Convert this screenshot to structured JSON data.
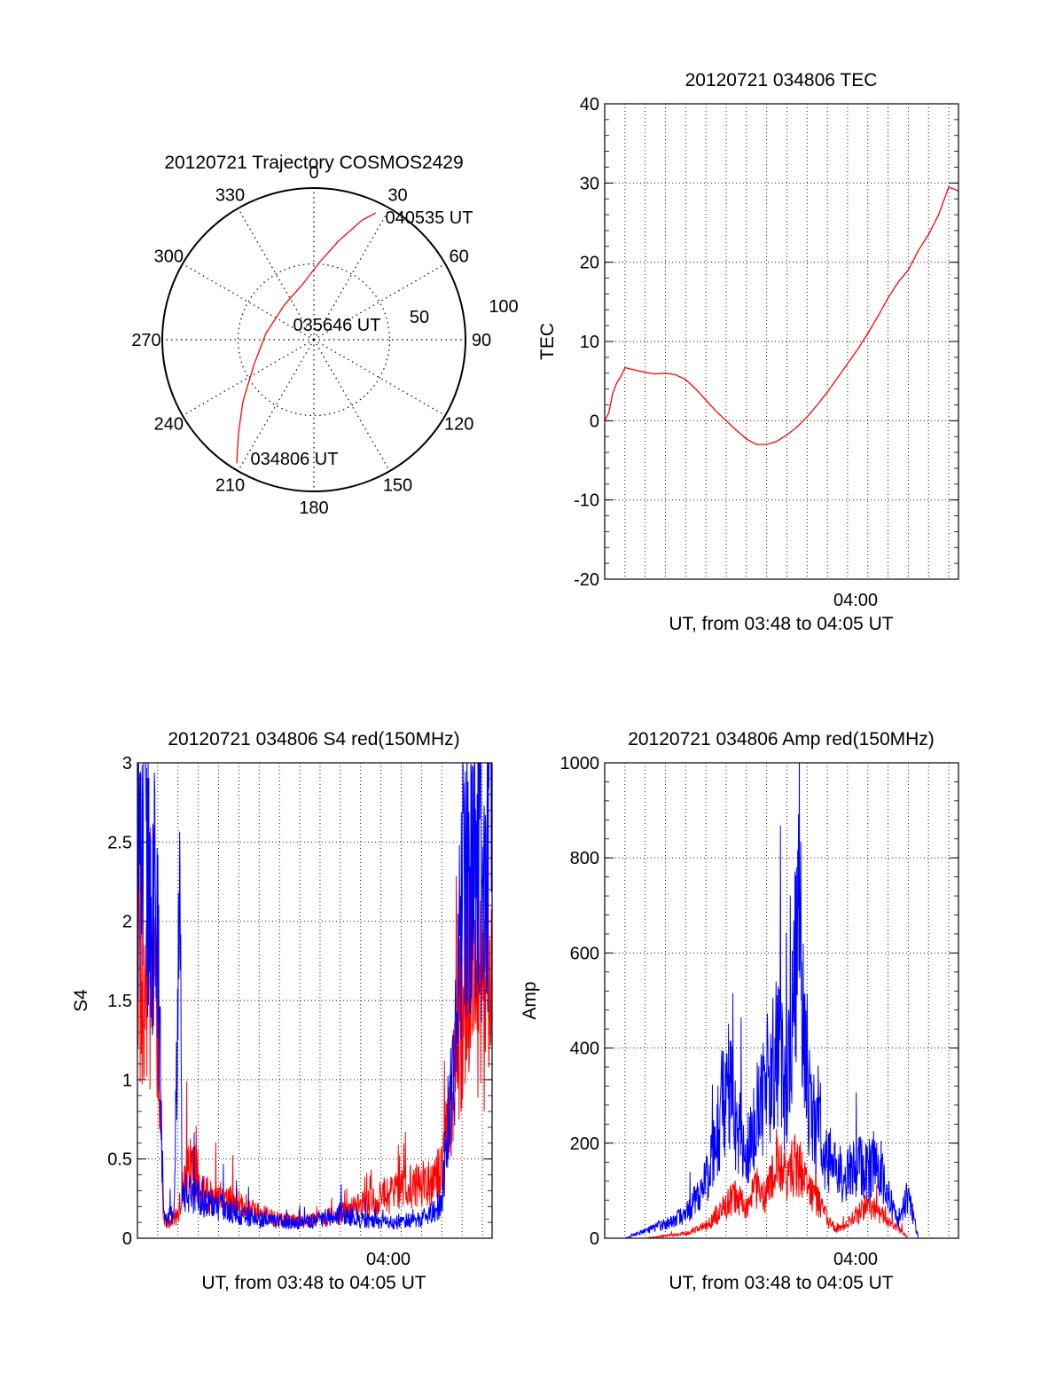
{
  "colors": {
    "red": "#ff0000",
    "blue": "#0000ff",
    "axis": "#000000",
    "grid": "#000000"
  },
  "chart_data": [
    {
      "id": "trajectory",
      "type": "polar",
      "title": "20120721 Trajectory COSMOS2429",
      "angle_labels": [
        {
          "angle": 0,
          "text": "0"
        },
        {
          "angle": 30,
          "text": "30"
        },
        {
          "angle": 60,
          "text": "60"
        },
        {
          "angle": 90,
          "text": "90"
        },
        {
          "angle": 120,
          "text": "120"
        },
        {
          "angle": 150,
          "text": "150"
        },
        {
          "angle": 180,
          "text": "180"
        },
        {
          "angle": 210,
          "text": "210"
        },
        {
          "angle": 240,
          "text": "240"
        },
        {
          "angle": 270,
          "text": "270"
        },
        {
          "angle": 300,
          "text": "300"
        },
        {
          "angle": 330,
          "text": "330"
        }
      ],
      "radial_labels": [
        "50",
        "100"
      ],
      "radial_rings": [
        50
      ],
      "radial_max": 100,
      "track": {
        "points": [
          {
            "az": 212,
            "zen": 96
          },
          {
            "az": 219,
            "zen": 79
          },
          {
            "az": 229,
            "zen": 62
          },
          {
            "az": 247,
            "zen": 43
          },
          {
            "az": 277,
            "zen": 32
          },
          {
            "az": 319,
            "zen": 30
          },
          {
            "az": 348,
            "zen": 37
          },
          {
            "az": 4,
            "zen": 51
          },
          {
            "az": 14,
            "zen": 67
          },
          {
            "az": 22,
            "zen": 85
          },
          {
            "az": 26,
            "zen": 93
          }
        ],
        "color": "red"
      },
      "annotations": [
        "040535 UT",
        "035646 UT",
        "034806 UT"
      ]
    },
    {
      "id": "tec",
      "type": "line",
      "title": "20120721 034806 TEC",
      "xlabel": "UT, from 03:48 to 04:05 UT",
      "ylabel": "TEC",
      "xlim_minutes": [
        0,
        17.48
      ],
      "ylim": [
        -20,
        40
      ],
      "yticks": [
        "-20",
        "-10",
        "0",
        "10",
        "20",
        "30",
        "40"
      ],
      "xtick_labels": [
        {
          "at_minutes": 11.9,
          "text": "04:00"
        }
      ],
      "grid": true,
      "series": [
        {
          "color": "red",
          "points": [
            [
              0.0,
              0.0
            ],
            [
              0.2,
              1.0
            ],
            [
              0.4,
              3.5
            ],
            [
              0.6,
              4.8
            ],
            [
              0.8,
              5.6
            ],
            [
              1.0,
              6.7
            ],
            [
              1.5,
              6.4
            ],
            [
              2.0,
              6.1
            ],
            [
              2.5,
              5.9
            ],
            [
              3.0,
              6.0
            ],
            [
              3.5,
              5.8
            ],
            [
              4.0,
              5.2
            ],
            [
              4.5,
              4.0
            ],
            [
              5.0,
              2.6
            ],
            [
              5.5,
              1.2
            ],
            [
              6.0,
              0.0
            ],
            [
              6.5,
              -1.2
            ],
            [
              7.0,
              -2.3
            ],
            [
              7.5,
              -3.0
            ],
            [
              8.0,
              -3.0
            ],
            [
              8.5,
              -2.6
            ],
            [
              9.0,
              -1.8
            ],
            [
              9.5,
              -0.8
            ],
            [
              10.0,
              0.5
            ],
            [
              10.5,
              2.0
            ],
            [
              11.0,
              3.6
            ],
            [
              11.5,
              5.4
            ],
            [
              12.0,
              7.2
            ],
            [
              12.5,
              9.0
            ],
            [
              13.0,
              11.0
            ],
            [
              13.5,
              13.2
            ],
            [
              14.0,
              15.5
            ],
            [
              14.5,
              17.5
            ],
            [
              15.0,
              19.0
            ],
            [
              15.5,
              21.5
            ],
            [
              16.0,
              23.5
            ],
            [
              16.5,
              26.0
            ],
            [
              17.0,
              29.5
            ],
            [
              17.48,
              29.0
            ]
          ]
        }
      ]
    },
    {
      "id": "s4",
      "type": "line",
      "title": "20120721 034806 S4 red(150MHz)",
      "xlabel": "UT, from 03:48 to 04:05 UT",
      "ylabel": "S4",
      "xlim_minutes": [
        0,
        17.48
      ],
      "ylim": [
        0,
        3
      ],
      "yticks": [
        "0",
        "0.5",
        "1",
        "1.5",
        "2",
        "2.5",
        "3"
      ],
      "xtick_labels": [
        {
          "at_minutes": 11.9,
          "text": "04:00"
        }
      ],
      "grid": true,
      "series": [
        {
          "color": "red",
          "points": [
            [
              0.0,
              2.0
            ],
            [
              0.3,
              1.2
            ],
            [
              0.6,
              1.7
            ],
            [
              0.9,
              1.5
            ],
            [
              1.1,
              0.8
            ],
            [
              1.3,
              0.1
            ],
            [
              2.0,
              0.15
            ],
            [
              2.5,
              0.5
            ],
            [
              3.0,
              0.3
            ],
            [
              4.0,
              0.25
            ],
            [
              5.0,
              0.22
            ],
            [
              6.0,
              0.15
            ],
            [
              7.0,
              0.12
            ],
            [
              8.0,
              0.1
            ],
            [
              9.0,
              0.12
            ],
            [
              10.0,
              0.15
            ],
            [
              11.0,
              0.2
            ],
            [
              12.0,
              0.25
            ],
            [
              13.0,
              0.3
            ],
            [
              14.0,
              0.35
            ],
            [
              15.0,
              0.4
            ],
            [
              15.6,
              1.0
            ],
            [
              16.0,
              1.5
            ],
            [
              16.5,
              1.8
            ],
            [
              17.0,
              1.4
            ],
            [
              17.48,
              1.6
            ]
          ]
        },
        {
          "color": "blue",
          "points": [
            [
              0.0,
              2.4
            ],
            [
              0.3,
              2.8
            ],
            [
              0.6,
              2.0
            ],
            [
              0.9,
              2.4
            ],
            [
              1.1,
              1.2
            ],
            [
              1.3,
              0.12
            ],
            [
              1.8,
              0.15
            ],
            [
              2.1,
              2.0
            ],
            [
              2.2,
              0.3
            ],
            [
              3.0,
              0.25
            ],
            [
              4.0,
              0.2
            ],
            [
              5.0,
              0.15
            ],
            [
              6.0,
              0.12
            ],
            [
              7.0,
              0.1
            ],
            [
              8.0,
              0.1
            ],
            [
              9.0,
              0.12
            ],
            [
              10.0,
              0.15
            ],
            [
              11.0,
              0.12
            ],
            [
              12.0,
              0.1
            ],
            [
              13.0,
              0.1
            ],
            [
              14.0,
              0.12
            ],
            [
              15.0,
              0.2
            ],
            [
              15.6,
              1.2
            ],
            [
              16.0,
              2.2
            ],
            [
              16.5,
              2.6
            ],
            [
              17.0,
              2.3
            ],
            [
              17.48,
              2.8
            ]
          ]
        }
      ]
    },
    {
      "id": "amp",
      "type": "line",
      "title": "20120721 034806 Amp red(150MHz)",
      "xlabel": "UT, from 03:48 to 04:05 UT",
      "ylabel": "Amp",
      "xlim_minutes": [
        0,
        17.48
      ],
      "ylim": [
        0,
        1000
      ],
      "yticks": [
        "0",
        "200",
        "400",
        "600",
        "800",
        "1000"
      ],
      "xtick_labels": [
        {
          "at_minutes": 11.9,
          "text": "04:00"
        }
      ],
      "grid": true,
      "series": [
        {
          "color": "red",
          "points": [
            [
              0.0,
              0
            ],
            [
              2.0,
              0
            ],
            [
              3.0,
              5
            ],
            [
              4.0,
              10
            ],
            [
              5.0,
              25
            ],
            [
              6.0,
              70
            ],
            [
              6.5,
              90
            ],
            [
              7.0,
              60
            ],
            [
              7.5,
              110
            ],
            [
              8.0,
              90
            ],
            [
              8.5,
              150
            ],
            [
              9.0,
              130
            ],
            [
              9.5,
              160
            ],
            [
              10.0,
              110
            ],
            [
              10.5,
              80
            ],
            [
              11.0,
              40
            ],
            [
              11.5,
              15
            ],
            [
              12.0,
              30
            ],
            [
              12.5,
              50
            ],
            [
              13.0,
              70
            ],
            [
              13.5,
              55
            ],
            [
              14.0,
              40
            ],
            [
              14.5,
              20
            ],
            [
              15.0,
              0
            ],
            [
              17.48,
              0
            ]
          ]
        },
        {
          "color": "blue",
          "points": [
            [
              0.0,
              0
            ],
            [
              1.0,
              0
            ],
            [
              2.0,
              15
            ],
            [
              3.0,
              30
            ],
            [
              4.0,
              50
            ],
            [
              5.0,
              120
            ],
            [
              5.5,
              200
            ],
            [
              6.0,
              330
            ],
            [
              6.5,
              250
            ],
            [
              7.0,
              160
            ],
            [
              7.5,
              250
            ],
            [
              8.0,
              340
            ],
            [
              8.5,
              380
            ],
            [
              9.0,
              310
            ],
            [
              9.5,
              610
            ],
            [
              10.0,
              330
            ],
            [
              10.5,
              220
            ],
            [
              11.0,
              160
            ],
            [
              11.5,
              140
            ],
            [
              12.0,
              130
            ],
            [
              12.5,
              160
            ],
            [
              13.0,
              140
            ],
            [
              13.5,
              170
            ],
            [
              14.0,
              90
            ],
            [
              14.5,
              40
            ],
            [
              15.0,
              90
            ],
            [
              15.5,
              0
            ],
            [
              17.48,
              0
            ]
          ]
        }
      ]
    }
  ]
}
